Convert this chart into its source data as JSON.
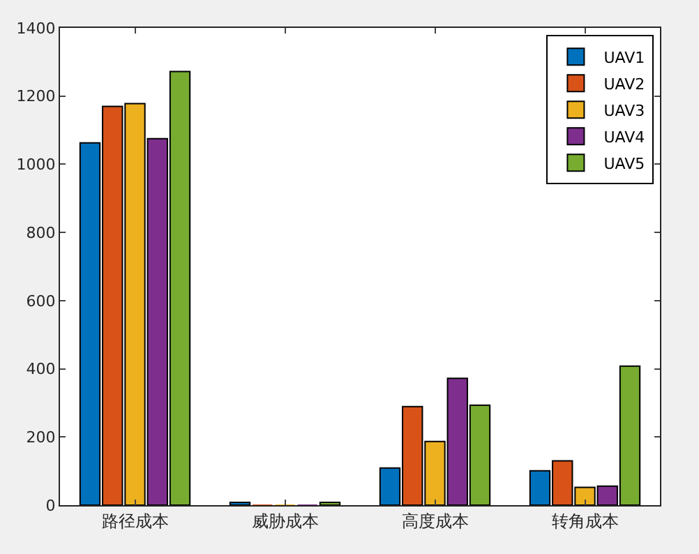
{
  "chart_data": {
    "type": "bar",
    "categories": [
      "路径成本",
      "威胁成本",
      "高度成本",
      "转角成本"
    ],
    "series": [
      {
        "name": "UAV1",
        "color": "#0072bd",
        "values": [
          1063,
          8,
          109,
          101
        ]
      },
      {
        "name": "UAV2",
        "color": "#d95319",
        "values": [
          1170,
          0,
          289,
          130
        ]
      },
      {
        "name": "UAV3",
        "color": "#edb120",
        "values": [
          1178,
          0,
          187,
          52
        ]
      },
      {
        "name": "UAV4",
        "color": "#7e2f8e",
        "values": [
          1075,
          0,
          372,
          56
        ]
      },
      {
        "name": "UAV5",
        "color": "#77ac30",
        "values": [
          1272,
          8,
          293,
          408
        ]
      }
    ],
    "ylim": [
      0,
      1400
    ],
    "yticks": [
      0,
      200,
      400,
      600,
      800,
      1000,
      1200,
      1400
    ],
    "legend": "top right"
  }
}
